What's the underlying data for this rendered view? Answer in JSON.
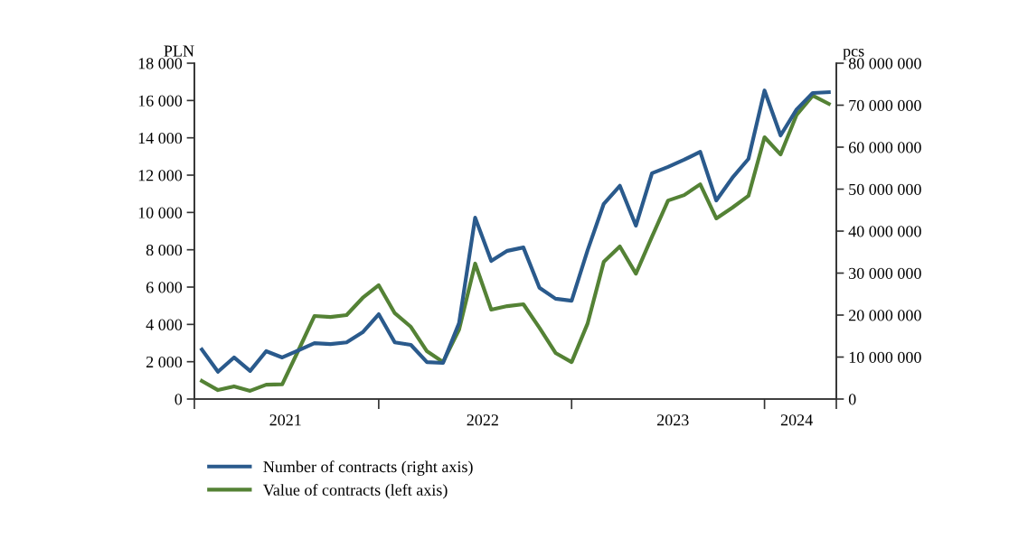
{
  "chart_data": {
    "type": "line",
    "ylabel": "PLN",
    "y2label": "pcs",
    "x": [
      "2021-01",
      "2021-02",
      "2021-03",
      "2021-04",
      "2021-05",
      "2021-06",
      "2021-07",
      "2021-08",
      "2021-09",
      "2021-10",
      "2021-11",
      "2021-12",
      "2022-01",
      "2022-02",
      "2022-03",
      "2022-04",
      "2022-05",
      "2022-06",
      "2022-07",
      "2022-08",
      "2022-09",
      "2022-10",
      "2022-11",
      "2022-12",
      "2023-01",
      "2023-02",
      "2023-03",
      "2023-04",
      "2023-05",
      "2023-06",
      "2023-07",
      "2023-08",
      "2023-09",
      "2023-10",
      "2023-11",
      "2023-12",
      "2024-01",
      "2024-02",
      "2024-03",
      "2024-04"
    ],
    "series": [
      {
        "name": "Number of contracts (right axis)",
        "color": "#2a5a8c",
        "axis": "y2",
        "values": [
          11800000,
          6500000,
          9900000,
          6700000,
          11400000,
          9900000,
          11600000,
          13300000,
          13100000,
          13500000,
          15900000,
          20200000,
          13500000,
          12900000,
          8800000,
          8600000,
          18100000,
          43200000,
          32900000,
          35300000,
          36100000,
          26500000,
          23900000,
          23400000,
          35500000,
          46500000,
          50800000,
          41300000,
          53800000,
          55300000,
          57000000,
          58900000,
          47300000,
          52700000,
          57200000,
          73500000,
          62800000,
          69000000,
          72900000,
          73100000
        ]
      },
      {
        "name": "Value of contracts (left axis)",
        "color": "#548235",
        "values": [
          970,
          480,
          680,
          440,
          770,
          790,
          2600,
          4450,
          4400,
          4500,
          5420,
          6100,
          4600,
          3870,
          2560,
          1980,
          3720,
          7260,
          4790,
          4980,
          5080,
          3820,
          2470,
          1980,
          4060,
          7350,
          8180,
          6720,
          8700,
          10640,
          10930,
          11510,
          9680,
          10260,
          10890,
          14030,
          13110,
          15240,
          16260,
          15820
        ]
      }
    ],
    "xlim": [
      "2020-12-17",
      "2024-04-15"
    ],
    "xticks": [
      {
        "value": "2020-12-17",
        "label": null
      },
      {
        "value": "2021-12",
        "label": null
      },
      {
        "value": "2022-12",
        "label": null
      },
      {
        "value": "2023-12",
        "label": null
      },
      {
        "value": "2024-04-15",
        "label": null
      },
      {
        "value": "2021-06-07",
        "label": "2021"
      },
      {
        "value": "2022-06-15",
        "label": "2022"
      },
      {
        "value": "2023-06-10",
        "label": "2023"
      },
      {
        "value": "2024-02-01",
        "label": "2024"
      }
    ],
    "ylim": [
      0,
      18000
    ],
    "yticks": [
      0,
      {
        "value": 2000,
        "label": "2 000"
      },
      {
        "value": 4000,
        "label": "4 000"
      },
      {
        "value": 6000,
        "label": "6 000"
      },
      {
        "value": 8000,
        "label": "8 000"
      },
      {
        "value": 10000,
        "label": "10 000"
      },
      {
        "value": 12000,
        "label": "12 000"
      },
      {
        "value": 14000,
        "label": "14 000"
      },
      {
        "value": 16000,
        "label": "16 000"
      },
      {
        "value": 18000,
        "label": "18 000"
      }
    ],
    "y2lim": [
      0,
      80000000
    ],
    "y2ticks": [
      0,
      {
        "value": 10000000,
        "label": "10 000 000"
      },
      {
        "value": 20000000,
        "label": "20 000 000"
      },
      {
        "value": 30000000,
        "label": "30 000 000"
      },
      {
        "value": 40000000,
        "label": "40 000 000"
      },
      {
        "value": 50000000,
        "label": "50 000 000"
      },
      {
        "value": 60000000,
        "label": "60 000 000"
      },
      {
        "value": 70000000,
        "label": "70 000 000"
      },
      {
        "value": 80000000,
        "label": "80 000 000"
      }
    ],
    "grid": false,
    "legend": "bottom",
    "marker": "none",
    "line_style": "solid"
  }
}
